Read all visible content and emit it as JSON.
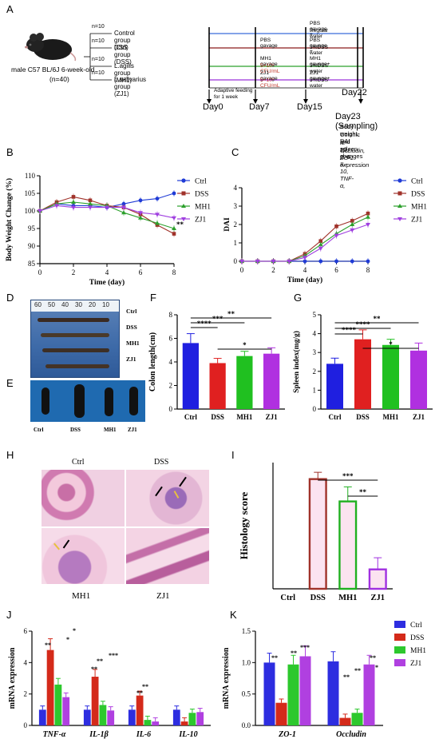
{
  "panel_labels": [
    "A",
    "B",
    "C",
    "D",
    "E",
    "F",
    "G",
    "H",
    "I",
    "J",
    "K"
  ],
  "panelA": {
    "mouse_label": "male C57 BL/6J  6-week-old",
    "mouse_n": "(n=40)",
    "groups": [
      {
        "n": "n=10",
        "name": "Control group (Ctrl)",
        "color": "#3b6cd9"
      },
      {
        "n": "n=10",
        "name": "DSS group (DSS)",
        "color": "#8b1a1a"
      },
      {
        "n": "n=10",
        "name": "L.agilis group (MH1)",
        "color": "#2ca02c"
      },
      {
        "n": "n=10",
        "name": "L.salivarius group (ZJ1)",
        "color": "#9b30d9"
      }
    ],
    "treat_a": [
      "",
      "PBS gavage",
      "MH1 gavage",
      "ZJ1 gavage"
    ],
    "treat_b": [
      "",
      "",
      "5×10⁹ CFU/mL",
      "5×10⁹ CFU/mL"
    ],
    "treat_c": [
      "PBS gavage +",
      "PBS gavage +",
      "MH1 gavage+",
      "ZJ1 gavage+"
    ],
    "treat_d": [
      "Regular water",
      "3%DSS water",
      "3%DSS water",
      "3%DSS water"
    ],
    "adaptive": "Adaptive feeding for 1 week",
    "days": [
      "Day0",
      "Day7",
      "Day15",
      "Day22",
      "Day23 (Sampling)"
    ],
    "outcomes": [
      "Body weight, DAI",
      "Colonic and spleen changes",
      "IL-1β, IL-6, IL-10, TNF-α,",
      "Occludin, ZO-1 expression"
    ]
  },
  "chart_data": [
    {
      "id": "B",
      "type": "line",
      "xlabel": "Time (day)",
      "ylabel": "Body Weight Change (%)",
      "x": [
        0,
        1,
        2,
        3,
        4,
        5,
        6,
        7,
        8
      ],
      "xlim": [
        0,
        8
      ],
      "ylim": [
        85,
        110
      ],
      "xticks": [
        "0",
        "2",
        "4",
        "6",
        "8"
      ],
      "yticks": [
        "85",
        "90",
        "95",
        "100",
        "105",
        "110"
      ],
      "series": [
        {
          "name": "Ctrl",
          "color": "#1f3bd6",
          "values": [
            100,
            102,
            101.5,
            101.5,
            101,
            102,
            103,
            103.5,
            105
          ]
        },
        {
          "name": "DSS",
          "color": "#a0322a",
          "values": [
            100,
            102.5,
            104,
            103,
            101.5,
            101,
            99,
            96,
            93.5
          ]
        },
        {
          "name": "MH1",
          "color": "#2ca02c",
          "values": [
            100,
            102,
            102.5,
            102,
            101.5,
            99.5,
            98,
            96.5,
            95
          ]
        },
        {
          "name": "ZJ1",
          "color": "#a040e0",
          "values": [
            100,
            101.5,
            101,
            101,
            101,
            101,
            99.5,
            99,
            98
          ]
        }
      ],
      "annotation": "**"
    },
    {
      "id": "C",
      "type": "line",
      "xlabel": "Time (day)",
      "ylabel": "DAI",
      "x": [
        0,
        1,
        2,
        3,
        4,
        5,
        6,
        7,
        8
      ],
      "xlim": [
        0,
        8
      ],
      "ylim": [
        0,
        4
      ],
      "xticks": [
        "0",
        "2",
        "4",
        "6",
        "8"
      ],
      "yticks": [
        "0",
        "1",
        "2",
        "3",
        "4"
      ],
      "series": [
        {
          "name": "Ctrl",
          "color": "#1f3bd6",
          "values": [
            0,
            0,
            0,
            0,
            0,
            0,
            0,
            0,
            0
          ]
        },
        {
          "name": "DSS",
          "color": "#a0322a",
          "values": [
            0,
            0,
            0,
            0,
            0.4,
            1.1,
            1.9,
            2.2,
            2.6
          ]
        },
        {
          "name": "MH1",
          "color": "#2ca02c",
          "values": [
            0,
            0,
            0,
            0,
            0.3,
            0.9,
            1.5,
            2.0,
            2.4
          ]
        },
        {
          "name": "ZJ1",
          "color": "#a040e0",
          "values": [
            0,
            0,
            0,
            0,
            0.2,
            0.7,
            1.4,
            1.7,
            2.0
          ]
        }
      ]
    },
    {
      "id": "F",
      "type": "bar",
      "ylabel": "Colon length(cm)",
      "categories": [
        "Ctrl",
        "DSS",
        "MH1",
        "ZJ1"
      ],
      "colors": [
        "#1f1fe0",
        "#e02020",
        "#20c020",
        "#b030e0"
      ],
      "values": [
        5.6,
        3.9,
        4.5,
        4.7
      ],
      "errors": [
        0.8,
        0.4,
        0.4,
        0.5
      ],
      "ylim": [
        0,
        8
      ],
      "yticks": [
        "0",
        "2",
        "4",
        "6",
        "8"
      ],
      "sig": [
        "****",
        "***",
        "**",
        "*"
      ]
    },
    {
      "id": "G",
      "type": "bar",
      "ylabel": "Spleen index(mg/g)",
      "categories": [
        "Ctrl",
        "DSS",
        "MH1",
        "ZJ1"
      ],
      "colors": [
        "#1f1fe0",
        "#e02020",
        "#20c020",
        "#b030e0"
      ],
      "values": [
        2.4,
        3.7,
        3.4,
        3.1
      ],
      "errors": [
        0.3,
        0.5,
        0.3,
        0.4
      ],
      "ylim": [
        0,
        5
      ],
      "yticks": [
        "0",
        "1",
        "2",
        "3",
        "4",
        "5"
      ],
      "sig": [
        "****",
        "****",
        "**",
        "*"
      ]
    },
    {
      "id": "I",
      "type": "bar",
      "ylabel": "Histology score",
      "categories": [
        "Ctrl",
        "DSS",
        "MH1",
        "ZJ1"
      ],
      "colors": [
        "#1f1fe0",
        "#a0322a",
        "#20b020",
        "#a030e0"
      ],
      "values": [
        0,
        11.3,
        9.0,
        2.0
      ],
      "errors": [
        0,
        0.7,
        1.5,
        1.2
      ],
      "ylim": [
        0,
        13
      ],
      "sig": [
        "***",
        "**"
      ]
    },
    {
      "id": "J",
      "type": "bar",
      "ylabel": "mRNA expression",
      "categories": [
        "TNF-α",
        "IL-1β",
        "IL-6",
        "IL-10"
      ],
      "series": [
        {
          "name": "Ctrl",
          "color": "#2d2de0",
          "values": [
            1.0,
            1.0,
            1.0,
            1.0
          ]
        },
        {
          "name": "DSS",
          "color": "#d42a1a",
          "values": [
            4.8,
            3.1,
            1.9,
            0.25
          ]
        },
        {
          "name": "MH1",
          "color": "#2dc82d",
          "values": [
            2.6,
            1.3,
            0.35,
            0.8
          ]
        },
        {
          "name": "ZJ1",
          "color": "#b040e0",
          "values": [
            1.8,
            0.95,
            0.25,
            0.85
          ]
        }
      ],
      "ylim": [
        0,
        6
      ],
      "yticks": [
        "0",
        "2",
        "4",
        "6"
      ]
    },
    {
      "id": "K",
      "type": "bar",
      "ylabel": "mRNA expression",
      "categories": [
        "ZO-1",
        "Occludin"
      ],
      "series": [
        {
          "name": "Ctrl",
          "color": "#2d2de0",
          "values": [
            1.0,
            1.02
          ]
        },
        {
          "name": "DSS",
          "color": "#d42a1a",
          "values": [
            0.36,
            0.12
          ]
        },
        {
          "name": "MH1",
          "color": "#2dc82d",
          "values": [
            0.97,
            0.2
          ]
        },
        {
          "name": "ZJ1",
          "color": "#b040e0",
          "values": [
            1.1,
            0.97
          ]
        }
      ],
      "ylim": [
        0,
        1.5
      ],
      "yticks": [
        "0.0",
        "0.5",
        "1.0",
        "1.5"
      ]
    }
  ],
  "panelD": {
    "ruler": [
      "60",
      "50",
      "40",
      "30",
      "20",
      "10"
    ],
    "labels": [
      "Ctrl",
      "DSS",
      "MH1",
      "ZJ1"
    ]
  },
  "panelE": {
    "labels": [
      "Ctrl",
      "DSS",
      "MH1",
      "ZJ1"
    ]
  },
  "panelH": {
    "labels": [
      "Ctrl",
      "DSS",
      "MH1",
      "ZJ1"
    ]
  }
}
